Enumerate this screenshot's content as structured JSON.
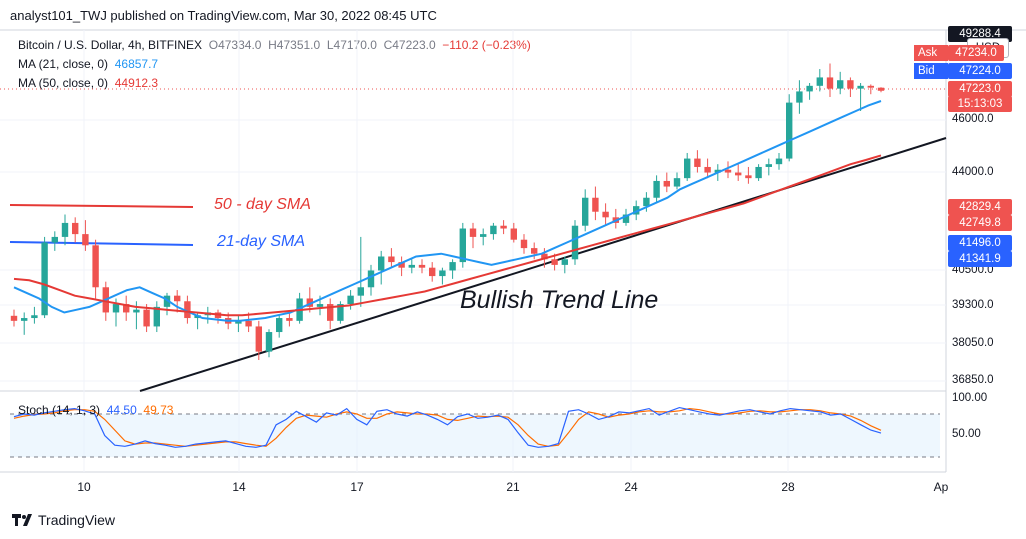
{
  "header": {
    "text": "analyst101_TWJ published on TradingView.com, Mar 30, 2022 08:45 UTC"
  },
  "legend": {
    "symbol": "Bitcoin / U.S. Dollar, 4h, BITFINEX",
    "o": "O47334.0",
    "h": "H47351.0",
    "l": "L47170.0",
    "c": "C47223.0",
    "chg": "−110.2 (−0.23%)",
    "ma21_label": "MA (21, close, 0)",
    "ma21_value": "46857.7",
    "ma50_label": "MA (50, close, 0)",
    "ma50_value": "44912.3"
  },
  "price_scale": {
    "currency": "USD",
    "top_value": "49288.4",
    "ask_label": "Ask",
    "ask_value": "47234.0",
    "bid_label": "Bid",
    "bid_value": "47224.0",
    "last_value": "47223.0",
    "countdown": "15:13:03",
    "ticks": [
      "46000.0",
      "44000.0",
      "40500.0",
      "39300.0",
      "38050.0",
      "36850.0"
    ],
    "badges": [
      "42829.4",
      "42749.8",
      "41496.0",
      "41341.9"
    ],
    "stoch_ticks": [
      "100.00",
      "50.00"
    ]
  },
  "annotations": {
    "sma50": "50 - day SMA",
    "sma21": "21-day SMA",
    "trend": "Bullish Trend Line"
  },
  "stoch": {
    "label": "Stoch (14, 1, 3)",
    "k": "44.50",
    "d": "49.73"
  },
  "footer": {
    "brand": "TradingView"
  },
  "colors": {
    "up": "#26a69a",
    "down": "#ef5350",
    "ma21": "#2196f3",
    "ma50": "#e53935",
    "stoch_k": "#2962ff",
    "stoch_d": "#ff6d00"
  },
  "chart_data": {
    "type": "candlestick",
    "x_ticks": [
      "10",
      "14",
      "17",
      "21",
      "24",
      "28",
      "Ap"
    ],
    "ohlc": [
      [
        39180,
        39400,
        38800,
        39000
      ],
      [
        39000,
        39300,
        38500,
        39100
      ],
      [
        39100,
        39500,
        38900,
        39200
      ],
      [
        39200,
        42000,
        39100,
        41800
      ],
      [
        41800,
        42200,
        41500,
        42000
      ],
      [
        42000,
        42800,
        41700,
        42500
      ],
      [
        42500,
        42700,
        41800,
        42100
      ],
      [
        42100,
        42600,
        41500,
        41700
      ],
      [
        41700,
        41900,
        39800,
        40200
      ],
      [
        40200,
        40400,
        39000,
        39300
      ],
      [
        39300,
        39800,
        38800,
        39600
      ],
      [
        39600,
        39900,
        39000,
        39300
      ],
      [
        39300,
        39700,
        38700,
        39400
      ],
      [
        39400,
        39600,
        38600,
        38800
      ],
      [
        38800,
        39700,
        38600,
        39500
      ],
      [
        39500,
        40000,
        39200,
        39900
      ],
      [
        39900,
        40100,
        39300,
        39700
      ],
      [
        39700,
        39900,
        38900,
        39100
      ],
      [
        39100,
        39300,
        38700,
        39200
      ],
      [
        39200,
        39500,
        38900,
        39300
      ],
      [
        39300,
        39400,
        38900,
        39100
      ],
      [
        39100,
        39300,
        38700,
        38900
      ],
      [
        38900,
        39200,
        38600,
        39000
      ],
      [
        39000,
        39300,
        38600,
        38800
      ],
      [
        38800,
        39000,
        37600,
        37900
      ],
      [
        37900,
        38700,
        37700,
        38600
      ],
      [
        38600,
        39200,
        38400,
        39100
      ],
      [
        39100,
        39300,
        38800,
        39000
      ],
      [
        39000,
        40000,
        38900,
        39800
      ],
      [
        39800,
        40200,
        39300,
        39500
      ],
      [
        39500,
        39900,
        39200,
        39600
      ],
      [
        39600,
        39800,
        38700,
        39000
      ],
      [
        39000,
        39700,
        38900,
        39600
      ],
      [
        39600,
        40100,
        39400,
        39900
      ],
      [
        39900,
        42000,
        39500,
        40200
      ],
      [
        40200,
        41000,
        39900,
        40800
      ],
      [
        40800,
        41500,
        40300,
        41300
      ],
      [
        41300,
        41600,
        40900,
        41100
      ],
      [
        41100,
        41300,
        40600,
        40900
      ],
      [
        40900,
        41200,
        40700,
        41000
      ],
      [
        41000,
        41200,
        40700,
        40900
      ],
      [
        40900,
        41100,
        40400,
        40600
      ],
      [
        40600,
        40900,
        40300,
        40800
      ],
      [
        40800,
        41200,
        40500,
        41100
      ],
      [
        41100,
        42500,
        40900,
        42300
      ],
      [
        42300,
        42500,
        41600,
        42000
      ],
      [
        42000,
        42300,
        41700,
        42100
      ],
      [
        42100,
        42500,
        41900,
        42400
      ],
      [
        42400,
        42600,
        42100,
        42300
      ],
      [
        42300,
        42500,
        41800,
        41900
      ],
      [
        41900,
        42100,
        41400,
        41600
      ],
      [
        41600,
        41800,
        41200,
        41400
      ],
      [
        41400,
        41600,
        40900,
        41200
      ],
      [
        41200,
        41400,
        40800,
        41000
      ],
      [
        41000,
        41300,
        40700,
        41200
      ],
      [
        41200,
        42600,
        41000,
        42400
      ],
      [
        42400,
        43700,
        42200,
        43400
      ],
      [
        43400,
        43800,
        42600,
        42900
      ],
      [
        42900,
        43200,
        42400,
        42700
      ],
      [
        42700,
        43000,
        42300,
        42500
      ],
      [
        42500,
        43000,
        42400,
        42800
      ],
      [
        42800,
        43300,
        42600,
        43100
      ],
      [
        43100,
        43600,
        42900,
        43400
      ],
      [
        43400,
        44200,
        43200,
        44000
      ],
      [
        44000,
        44300,
        43600,
        43800
      ],
      [
        43800,
        44300,
        43700,
        44100
      ],
      [
        44100,
        45000,
        44000,
        44800
      ],
      [
        44800,
        45100,
        44300,
        44500
      ],
      [
        44500,
        44800,
        44100,
        44300
      ],
      [
        44300,
        44600,
        44000,
        44400
      ],
      [
        44400,
        44700,
        44100,
        44300
      ],
      [
        44300,
        44600,
        44000,
        44200
      ],
      [
        44200,
        44500,
        43900,
        44100
      ],
      [
        44100,
        44600,
        44000,
        44500
      ],
      [
        44500,
        44800,
        44200,
        44600
      ],
      [
        44600,
        45000,
        44400,
        44800
      ],
      [
        44800,
        47100,
        44700,
        46800
      ],
      [
        46800,
        47600,
        46400,
        47200
      ],
      [
        47200,
        47500,
        46900,
        47400
      ],
      [
        47400,
        48000,
        47200,
        47700
      ],
      [
        47700,
        48200,
        47000,
        47300
      ],
      [
        47300,
        47900,
        47100,
        47600
      ],
      [
        47600,
        47700,
        47000,
        47300
      ],
      [
        47300,
        47500,
        46500,
        47400
      ],
      [
        47400,
        47450,
        47100,
        47334
      ],
      [
        47334,
        47351,
        47170,
        47223
      ]
    ],
    "ma21": [
      40200,
      40000,
      39800,
      39500,
      39300,
      39400,
      39500,
      39700,
      39900,
      40100,
      40200,
      40000,
      39800,
      39500,
      39300,
      39100,
      39050,
      39000,
      39000,
      39050,
      39100,
      39200,
      39300,
      39500,
      39700,
      39900,
      40100,
      40300,
      40500,
      40700,
      40900,
      41100,
      41300,
      41350,
      41400,
      41300,
      41200,
      41100,
      41000,
      41100,
      41200,
      41300,
      41400,
      41600,
      41800,
      42000,
      42200,
      42400,
      42600,
      42800,
      43000,
      43200,
      43400,
      43700,
      43900,
      44100,
      44300,
      44500,
      44700,
      44900,
      45100,
      45300,
      45500,
      45700,
      45900,
      46100,
      46300,
      46500,
      46700,
      46857
    ],
    "ma50": [
      40500,
      40450,
      40300,
      40100,
      39900,
      39800,
      39700,
      39600,
      39500,
      39450,
      39400,
      39350,
      39300,
      39250,
      39200,
      39200,
      39250,
      39300,
      39350,
      39400,
      39450,
      39500,
      39550,
      39650,
      39750,
      39850,
      39950,
      40050,
      40200,
      40350,
      40500,
      40650,
      40800,
      40950,
      41100,
      41250,
      41400,
      41550,
      41700,
      41850,
      42000,
      42150,
      42300,
      42450,
      42600,
      42750,
      42900,
      43050,
      43200,
      43400,
      43600,
      43800,
      44000,
      44200,
      44400,
      44600,
      44750,
      44912
    ],
    "stoch_k": [
      75,
      80,
      78,
      82,
      85,
      88,
      90,
      86,
      80,
      40,
      22,
      20,
      24,
      30,
      25,
      22,
      18,
      20,
      24,
      26,
      28,
      30,
      25,
      20,
      18,
      22,
      60,
      70,
      85,
      75,
      65,
      82,
      78,
      90,
      70,
      60,
      85,
      88,
      80,
      76,
      84,
      78,
      70,
      60,
      75,
      80,
      72,
      74,
      78,
      70,
      45,
      22,
      18,
      20,
      25,
      85,
      88,
      80,
      70,
      75,
      84,
      82,
      86,
      90,
      78,
      85,
      92,
      88,
      84,
      80,
      78,
      82,
      86,
      88,
      84,
      80,
      86,
      90,
      88,
      86,
      84,
      78,
      80,
      70,
      60,
      50,
      44.5
    ],
    "stoch_d": [
      72,
      76,
      79,
      80,
      82,
      86,
      88,
      88,
      85,
      70,
      50,
      30,
      24,
      26,
      26,
      24,
      22,
      20,
      22,
      24,
      26,
      28,
      28,
      25,
      22,
      20,
      35,
      55,
      72,
      78,
      76,
      74,
      80,
      84,
      80,
      72,
      72,
      80,
      84,
      82,
      80,
      80,
      78,
      70,
      68,
      72,
      76,
      75,
      76,
      74,
      60,
      40,
      24,
      20,
      22,
      45,
      70,
      84,
      80,
      74,
      78,
      80,
      84,
      86,
      84,
      84,
      86,
      90,
      88,
      84,
      80,
      80,
      82,
      85,
      86,
      84,
      84,
      86,
      88,
      88,
      86,
      82,
      80,
      76,
      68,
      58,
      49.73
    ]
  }
}
